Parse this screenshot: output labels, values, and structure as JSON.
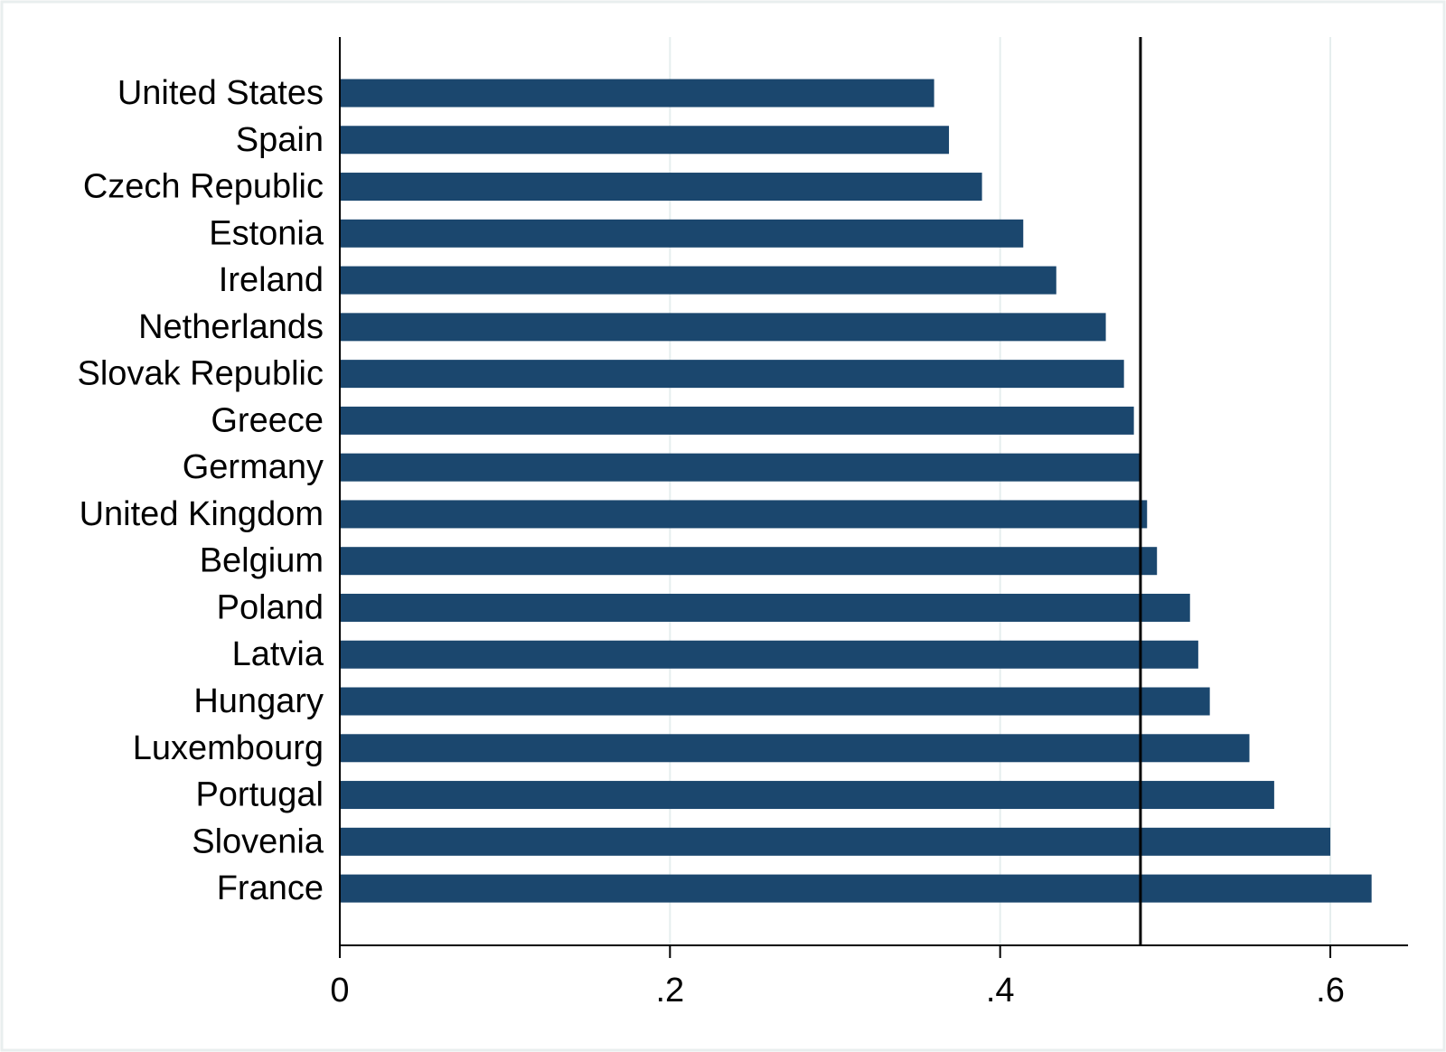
{
  "chart_data": {
    "type": "bar",
    "orientation": "horizontal",
    "categories": [
      "United States",
      "Spain",
      "Czech Republic",
      "Estonia",
      "Ireland",
      "Netherlands",
      "Slovak Republic",
      "Greece",
      "Germany",
      "United Kingdom",
      "Belgium",
      "Poland",
      "Latvia",
      "Hungary",
      "Luxembourg",
      "Portugal",
      "Slovenia",
      "France"
    ],
    "values": [
      0.36,
      0.369,
      0.389,
      0.414,
      0.434,
      0.464,
      0.475,
      0.481,
      0.485,
      0.489,
      0.495,
      0.515,
      0.52,
      0.527,
      0.551,
      0.566,
      0.6,
      0.625
    ],
    "reference_line": 0.485,
    "title": "",
    "xlabel": "",
    "ylabel": "",
    "xlim": [
      0,
      0.65
    ],
    "xticks": [
      0,
      0.2,
      0.4,
      0.6
    ],
    "xtick_labels": [
      "0",
      ".2",
      ".4",
      ".6"
    ],
    "grid": true,
    "legend": "none",
    "colors": {
      "bar": "#1b476e",
      "reference_line": "#000000",
      "grid": "#e6eeee",
      "axis": "#000000",
      "frame": "#e9eeee"
    }
  }
}
